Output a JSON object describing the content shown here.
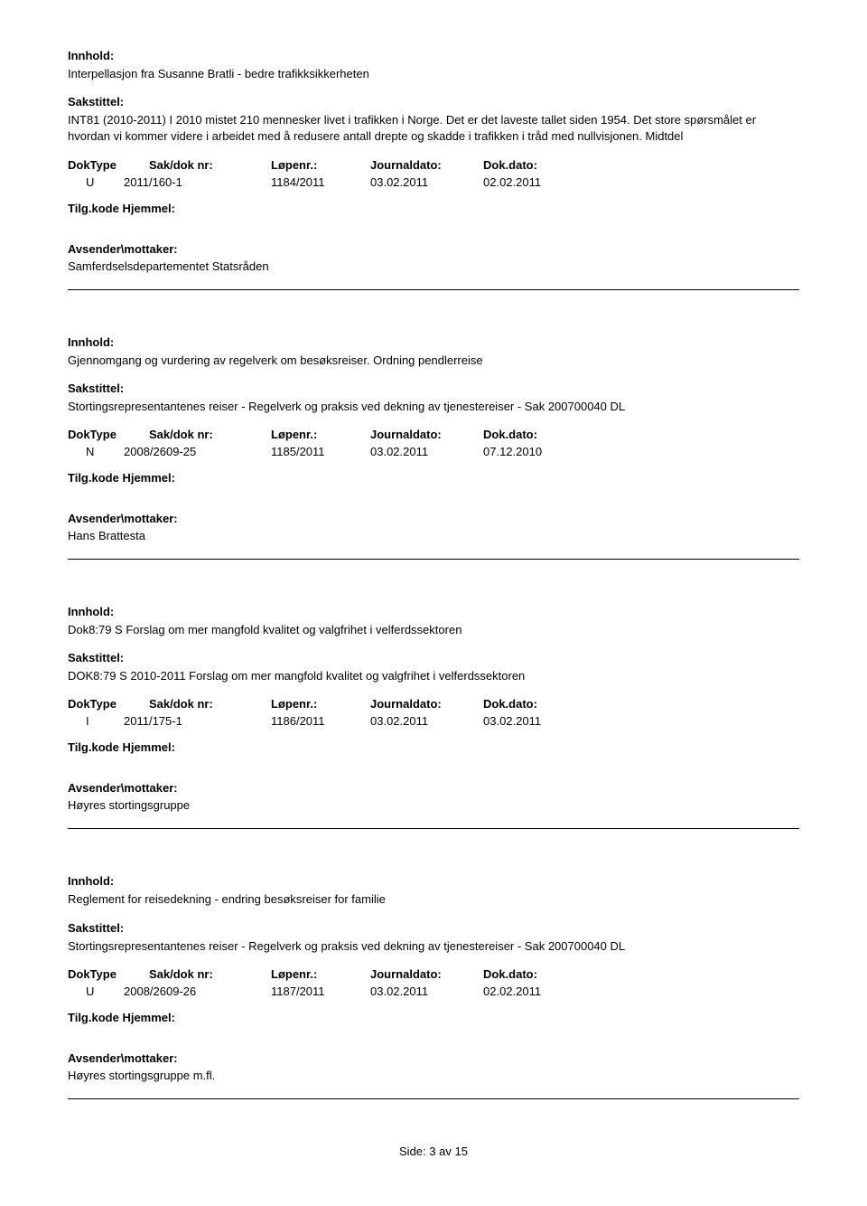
{
  "labels": {
    "innhold": "Innhold:",
    "sakstittel": "Sakstittel:",
    "doktype": "DokType",
    "sakdok": "Sak/dok nr:",
    "lopenr": "Løpenr.:",
    "journaldato": "Journaldato:",
    "dokdato": "Dok.dato:",
    "tilgkode": "Tilg.kode",
    "hjemmel": "Hjemmel:",
    "avsender": "Avsender\\mottaker:",
    "page_prefix": "Side:",
    "page_num": "3",
    "page_sep": "av",
    "page_total": "15"
  },
  "entries": [
    {
      "innhold": "Interpellasjon fra Susanne Bratli - bedre trafikksikkerheten",
      "sakstittel": "INT81 (2010-2011) I 2010 mistet 210 mennesker livet i trafikken i Norge. Det er det laveste tallet siden 1954. Det store spørsmålet er hvordan vi kommer videre i arbeidet med å redusere antall drepte og skadde i trafikken i tråd med nullvisjonen. Midtdel",
      "doktype": "U",
      "sakdok": "2011/160-1",
      "lopenr": "1184/2011",
      "journaldato": "03.02.2011",
      "dokdato": "02.02.2011",
      "avsender": "Samferdselsdepartementet Statsråden"
    },
    {
      "innhold": "Gjennomgang og vurdering av regelverk om besøksreiser. Ordning pendlerreise",
      "sakstittel": "Stortingsrepresentantenes reiser - Regelverk og praksis ved dekning av tjenestereiser - Sak 200700040 DL",
      "doktype": "N",
      "sakdok": "2008/2609-25",
      "lopenr": "1185/2011",
      "journaldato": "03.02.2011",
      "dokdato": "07.12.2010",
      "avsender": "Hans Brattesta"
    },
    {
      "innhold": "Dok8:79 S Forslag om mer mangfold kvalitet og valgfrihet i velferdssektoren",
      "sakstittel": "DOK8:79 S 2010-2011 Forslag om mer mangfold kvalitet og valgfrihet i velferdssektoren",
      "doktype": "I",
      "sakdok": "2011/175-1",
      "lopenr": "1186/2011",
      "journaldato": "03.02.2011",
      "dokdato": "03.02.2011",
      "avsender": "Høyres stortingsgruppe"
    },
    {
      "innhold": "Reglement for reisedekning - endring besøksreiser for familie",
      "sakstittel": "Stortingsrepresentantenes reiser - Regelverk og praksis ved dekning av tjenestereiser - Sak 200700040 DL",
      "doktype": "U",
      "sakdok": "2008/2609-26",
      "lopenr": "1187/2011",
      "journaldato": "03.02.2011",
      "dokdato": "02.02.2011",
      "avsender": "Høyres stortingsgruppe m.fl."
    }
  ]
}
